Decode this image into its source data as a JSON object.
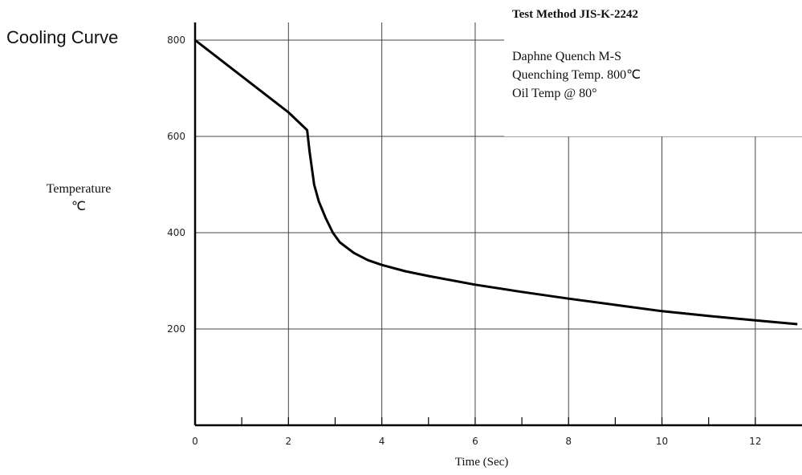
{
  "page": {
    "title": "Cooling Curve"
  },
  "info_box": {
    "heading": "Test Method JIS-K-2242",
    "lines": [
      "Daphne Quench M-S",
      "Quenching Temp. 800℃",
      "Oil Temp @ 80°"
    ]
  },
  "chart_data": {
    "type": "line",
    "title": "",
    "xlabel": "Time (Sec)",
    "ylabel_lines": [
      "Temperature",
      "℃"
    ],
    "xlim": [
      0,
      13
    ],
    "ylim": [
      0,
      870
    ],
    "x_ticks": [
      0,
      2,
      4,
      6,
      8,
      10,
      12
    ],
    "y_ticks": [
      200,
      400,
      600,
      800
    ],
    "grid": true,
    "series": [
      {
        "x": [
          0,
          2.0,
          2.4,
          2.45,
          2.55,
          2.65,
          2.8,
          2.95,
          3.1,
          3.4,
          3.7,
          4.0,
          4.5,
          5.0,
          6.0,
          7.0,
          8.0,
          9.0,
          10.0,
          11.0,
          12.0,
          12.9
        ],
        "y": [
          800,
          650,
          613,
          570,
          500,
          465,
          430,
          400,
          380,
          358,
          343,
          333,
          320,
          310,
          292,
          277,
          263,
          250,
          237,
          227,
          218,
          210
        ]
      }
    ],
    "color": "#000000"
  }
}
